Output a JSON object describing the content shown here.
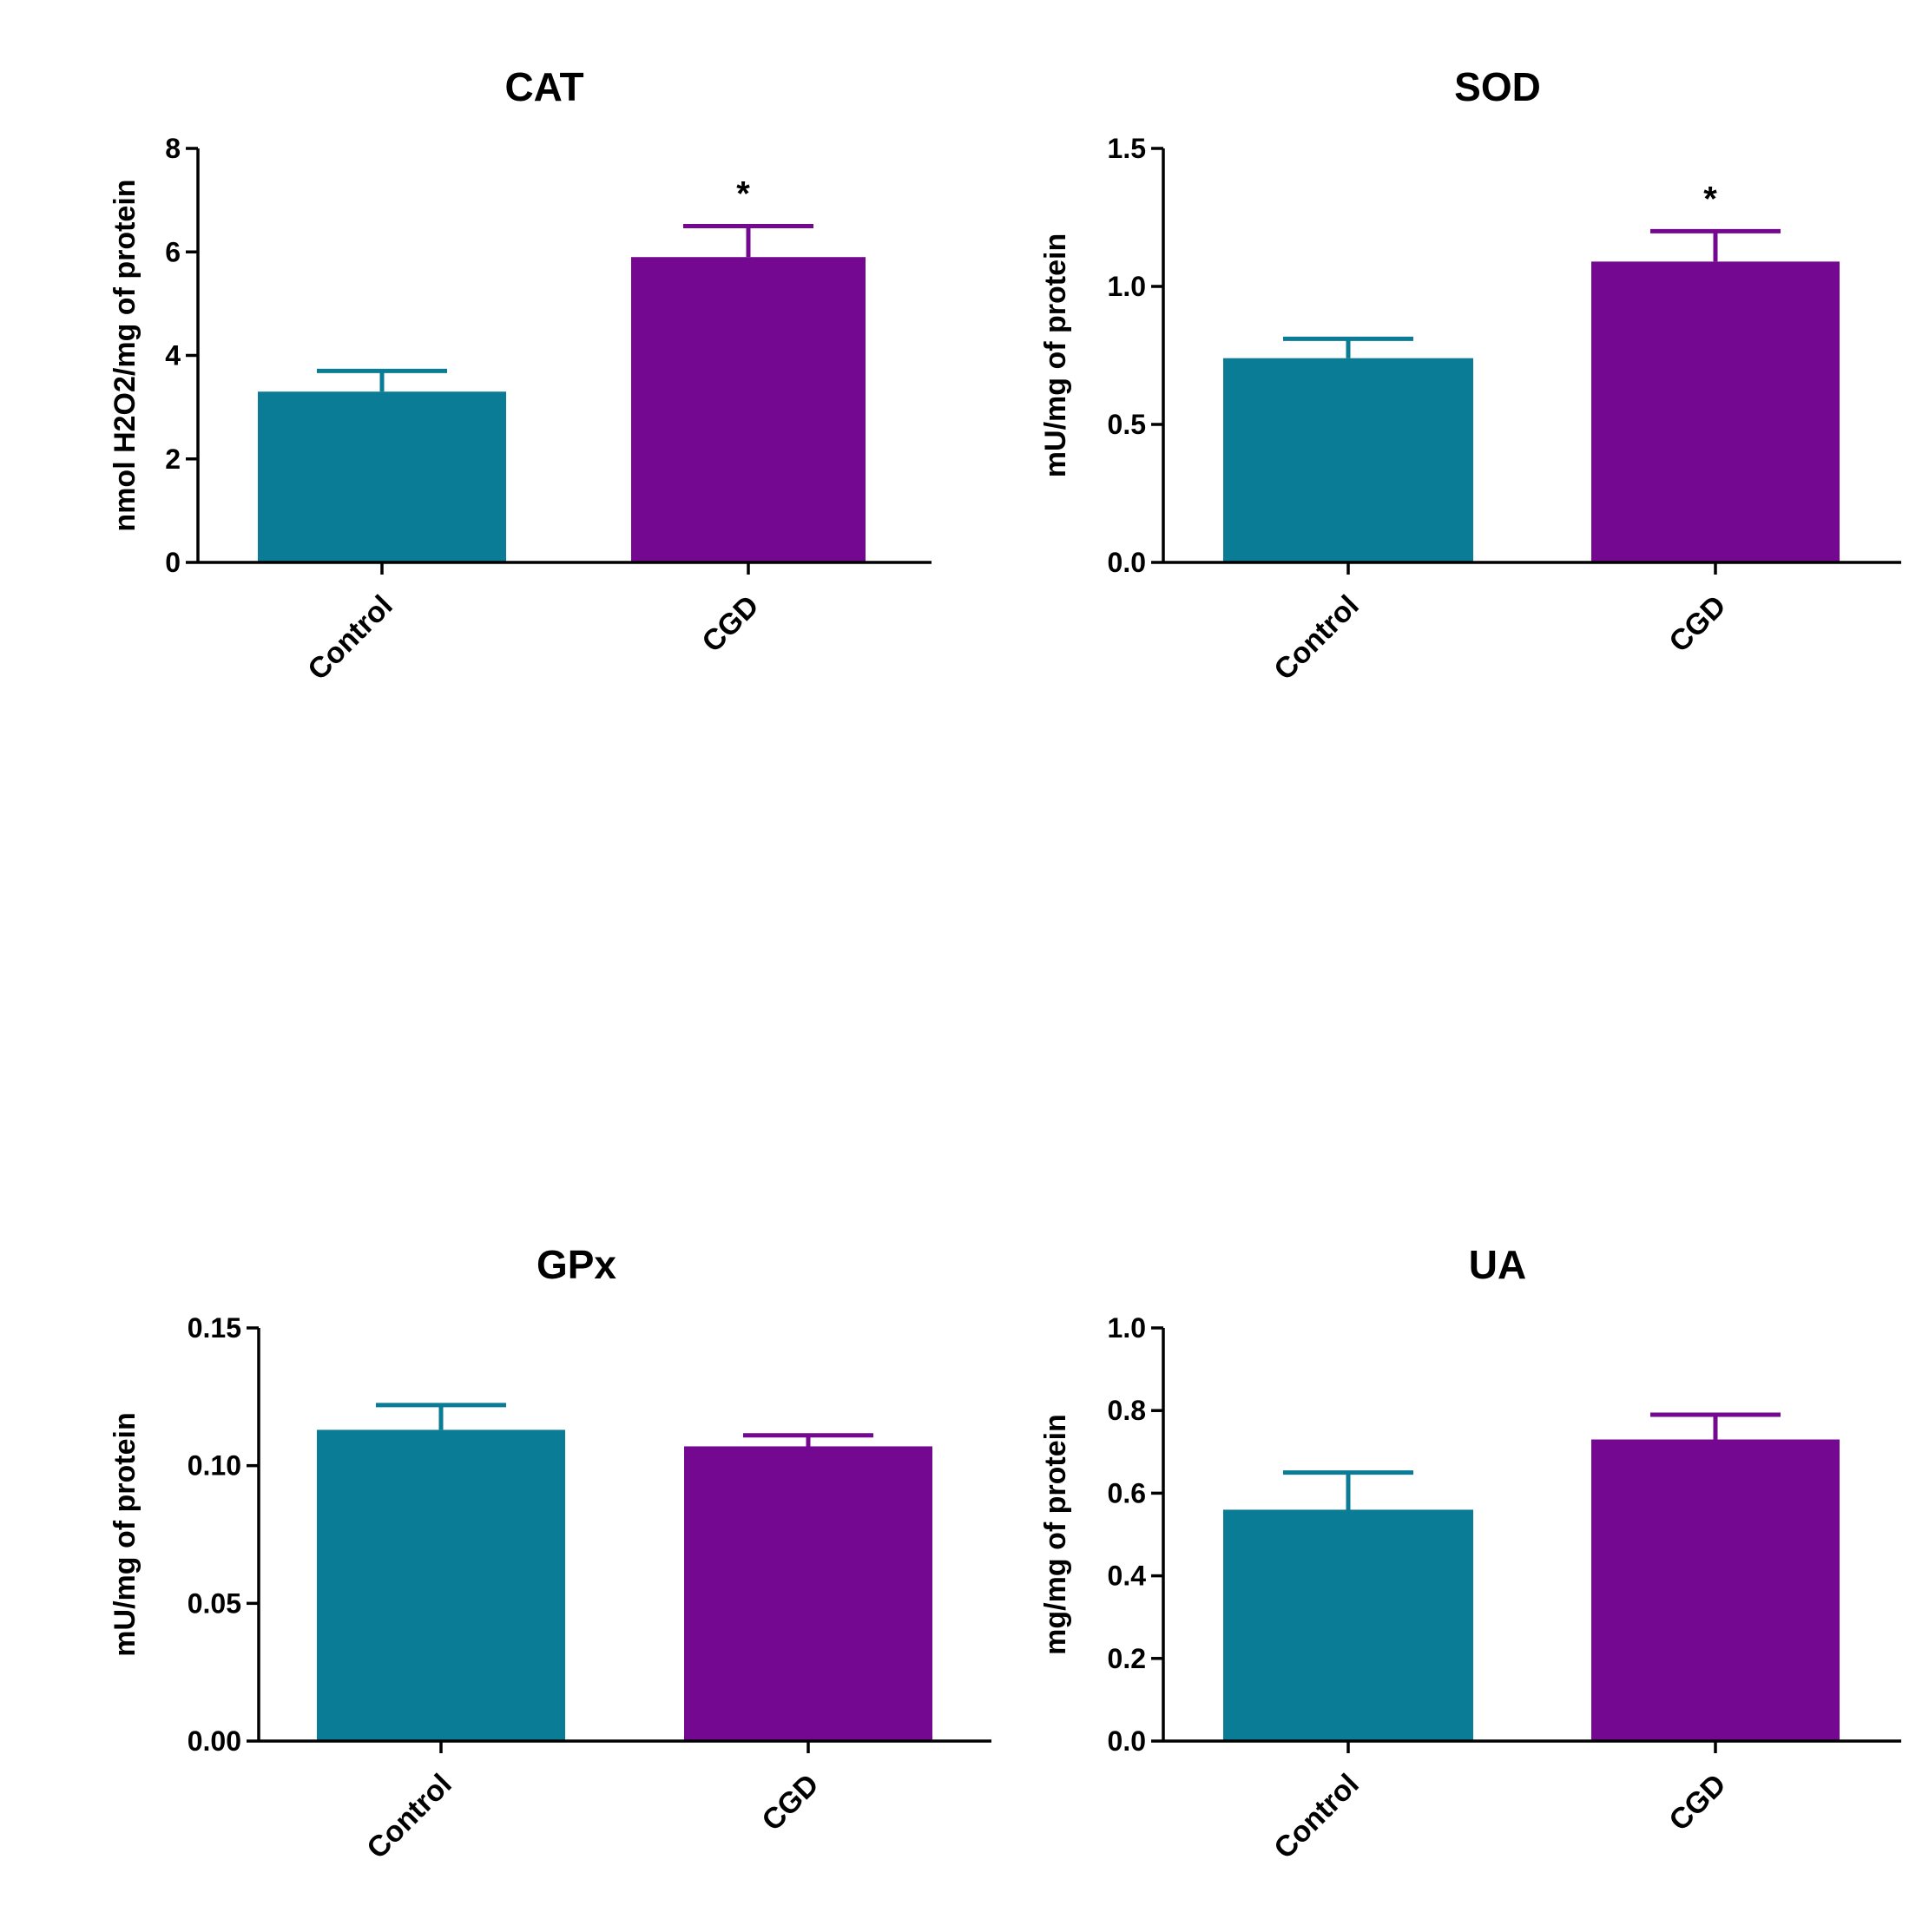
{
  "colors": {
    "control": "#0a7c96",
    "cgd": "#740891",
    "axis": "#000000"
  },
  "chart_data": [
    {
      "type": "bar",
      "title": "CAT",
      "ylabel": "nmol H2O2/mg of protein",
      "xlabel": "",
      "categories": [
        "Control",
        "CGD"
      ],
      "values": [
        3.3,
        5.9
      ],
      "errors": [
        0.4,
        0.6
      ],
      "significance": [
        "",
        "*"
      ],
      "ylim": [
        0,
        8
      ],
      "yticks": [
        0,
        2,
        4,
        6,
        8
      ],
      "ytick_labels": [
        "0",
        "2",
        "4",
        "6",
        "8"
      ]
    },
    {
      "type": "bar",
      "title": "SOD",
      "ylabel": "mU/mg of protein",
      "xlabel": "",
      "categories": [
        "Control",
        "CGD"
      ],
      "values": [
        0.74,
        1.09
      ],
      "errors": [
        0.07,
        0.11
      ],
      "significance": [
        "",
        "*"
      ],
      "ylim": [
        0,
        1.5
      ],
      "yticks": [
        0,
        0.5,
        1.0,
        1.5
      ],
      "ytick_labels": [
        "0.0",
        "0.5",
        "1.0",
        "1.5"
      ]
    },
    {
      "type": "bar",
      "title": "GPx",
      "ylabel": "mU/mg of protein",
      "xlabel": "",
      "categories": [
        "Control",
        "CGD"
      ],
      "values": [
        0.113,
        0.107
      ],
      "errors": [
        0.009,
        0.004
      ],
      "significance": [
        "",
        ""
      ],
      "ylim": [
        0,
        0.15
      ],
      "yticks": [
        0,
        0.05,
        0.1,
        0.15
      ],
      "ytick_labels": [
        "0.00",
        "0.05",
        "0.10",
        "0.15"
      ]
    },
    {
      "type": "bar",
      "title": "UA",
      "ylabel": "mg/mg of protein",
      "xlabel": "",
      "categories": [
        "Control",
        "CGD"
      ],
      "values": [
        0.56,
        0.73
      ],
      "errors": [
        0.09,
        0.06
      ],
      "significance": [
        "",
        ""
      ],
      "ylim": [
        0,
        1.0
      ],
      "yticks": [
        0,
        0.2,
        0.4,
        0.6,
        0.8,
        1.0
      ],
      "ytick_labels": [
        "0.0",
        "0.2",
        "0.4",
        "0.6",
        "0.8",
        "1.0"
      ]
    }
  ]
}
